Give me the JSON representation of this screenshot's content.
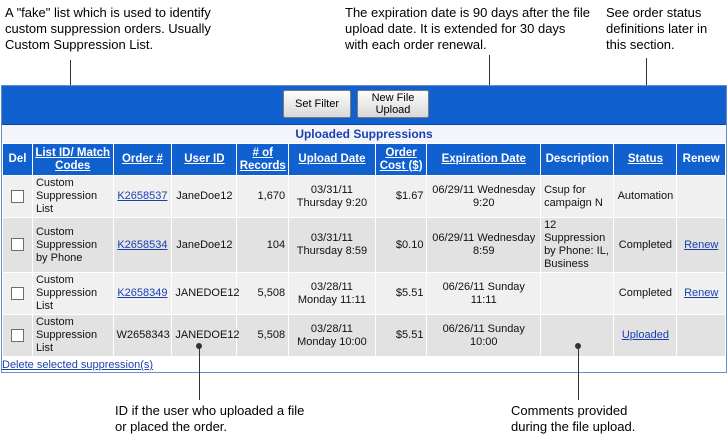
{
  "callouts": {
    "fake_list": "A \"fake\" list which is used to identify custom suppression orders. Usually Custom Suppression List.",
    "expiration": "The expiration date is 90 days after the file upload date. It is extended for 30 days with each order renewal.",
    "status_defs": "See order status definitions later in this section.",
    "user_id": "ID if the user who uploaded a file or placed the order.",
    "comments": "Comments provided during the file upload."
  },
  "toolbar": {
    "set_filter": "Set Filter",
    "new_upload_line1": "New File",
    "new_upload_line2": "Upload"
  },
  "section_title": "Uploaded Suppressions",
  "columns": {
    "del": "Del",
    "list_id": "List ID/ Match Codes",
    "order": "Order #",
    "user": "User ID",
    "records": "# of Records",
    "upload": "Upload Date",
    "cost": "Order Cost ($)",
    "expiration": "Expiration Date",
    "description": "Description",
    "status": "Status",
    "renew": "Renew"
  },
  "rows": [
    {
      "list": "Custom Suppression List",
      "order": "K2658537",
      "user": "JaneDoe12",
      "records": "1,670",
      "upload": "03/31/11 Thursday 9:20",
      "cost": "$1.67",
      "expiration": "06/29/11 Wednesday 9:20",
      "description": "Csup for campaign N",
      "status": "Automation",
      "renew": ""
    },
    {
      "list": "Custom Suppression by Phone",
      "order": "K2658534",
      "user": "JaneDoe12",
      "records": "104",
      "upload": "03/31/11 Thursday 8:59",
      "cost": "$0.10",
      "expiration": "06/29/11 Wednesday 8:59",
      "description": "12 Suppression by Phone: IL, Business",
      "status": "Completed",
      "renew": "Renew"
    },
    {
      "list": "Custom Suppression List",
      "order": "K2658349",
      "user": "JANEDOE12",
      "records": "5,508",
      "upload": "03/28/11 Monday 11:11",
      "cost": "$5.51",
      "expiration": "06/26/11 Sunday 11:11",
      "description": "",
      "status": "Completed",
      "renew": "Renew"
    },
    {
      "list": "Custom Suppression List",
      "order": "W2658343",
      "user": "JANEDOE12",
      "records": "5,508",
      "upload": "03/28/11 Monday 10:00",
      "cost": "$5.51",
      "expiration": "06/26/11 Sunday 10:00",
      "description": "",
      "status": "Uploaded",
      "renew": ""
    }
  ],
  "footer": {
    "delete_selected": "Delete selected suppression(s)"
  }
}
